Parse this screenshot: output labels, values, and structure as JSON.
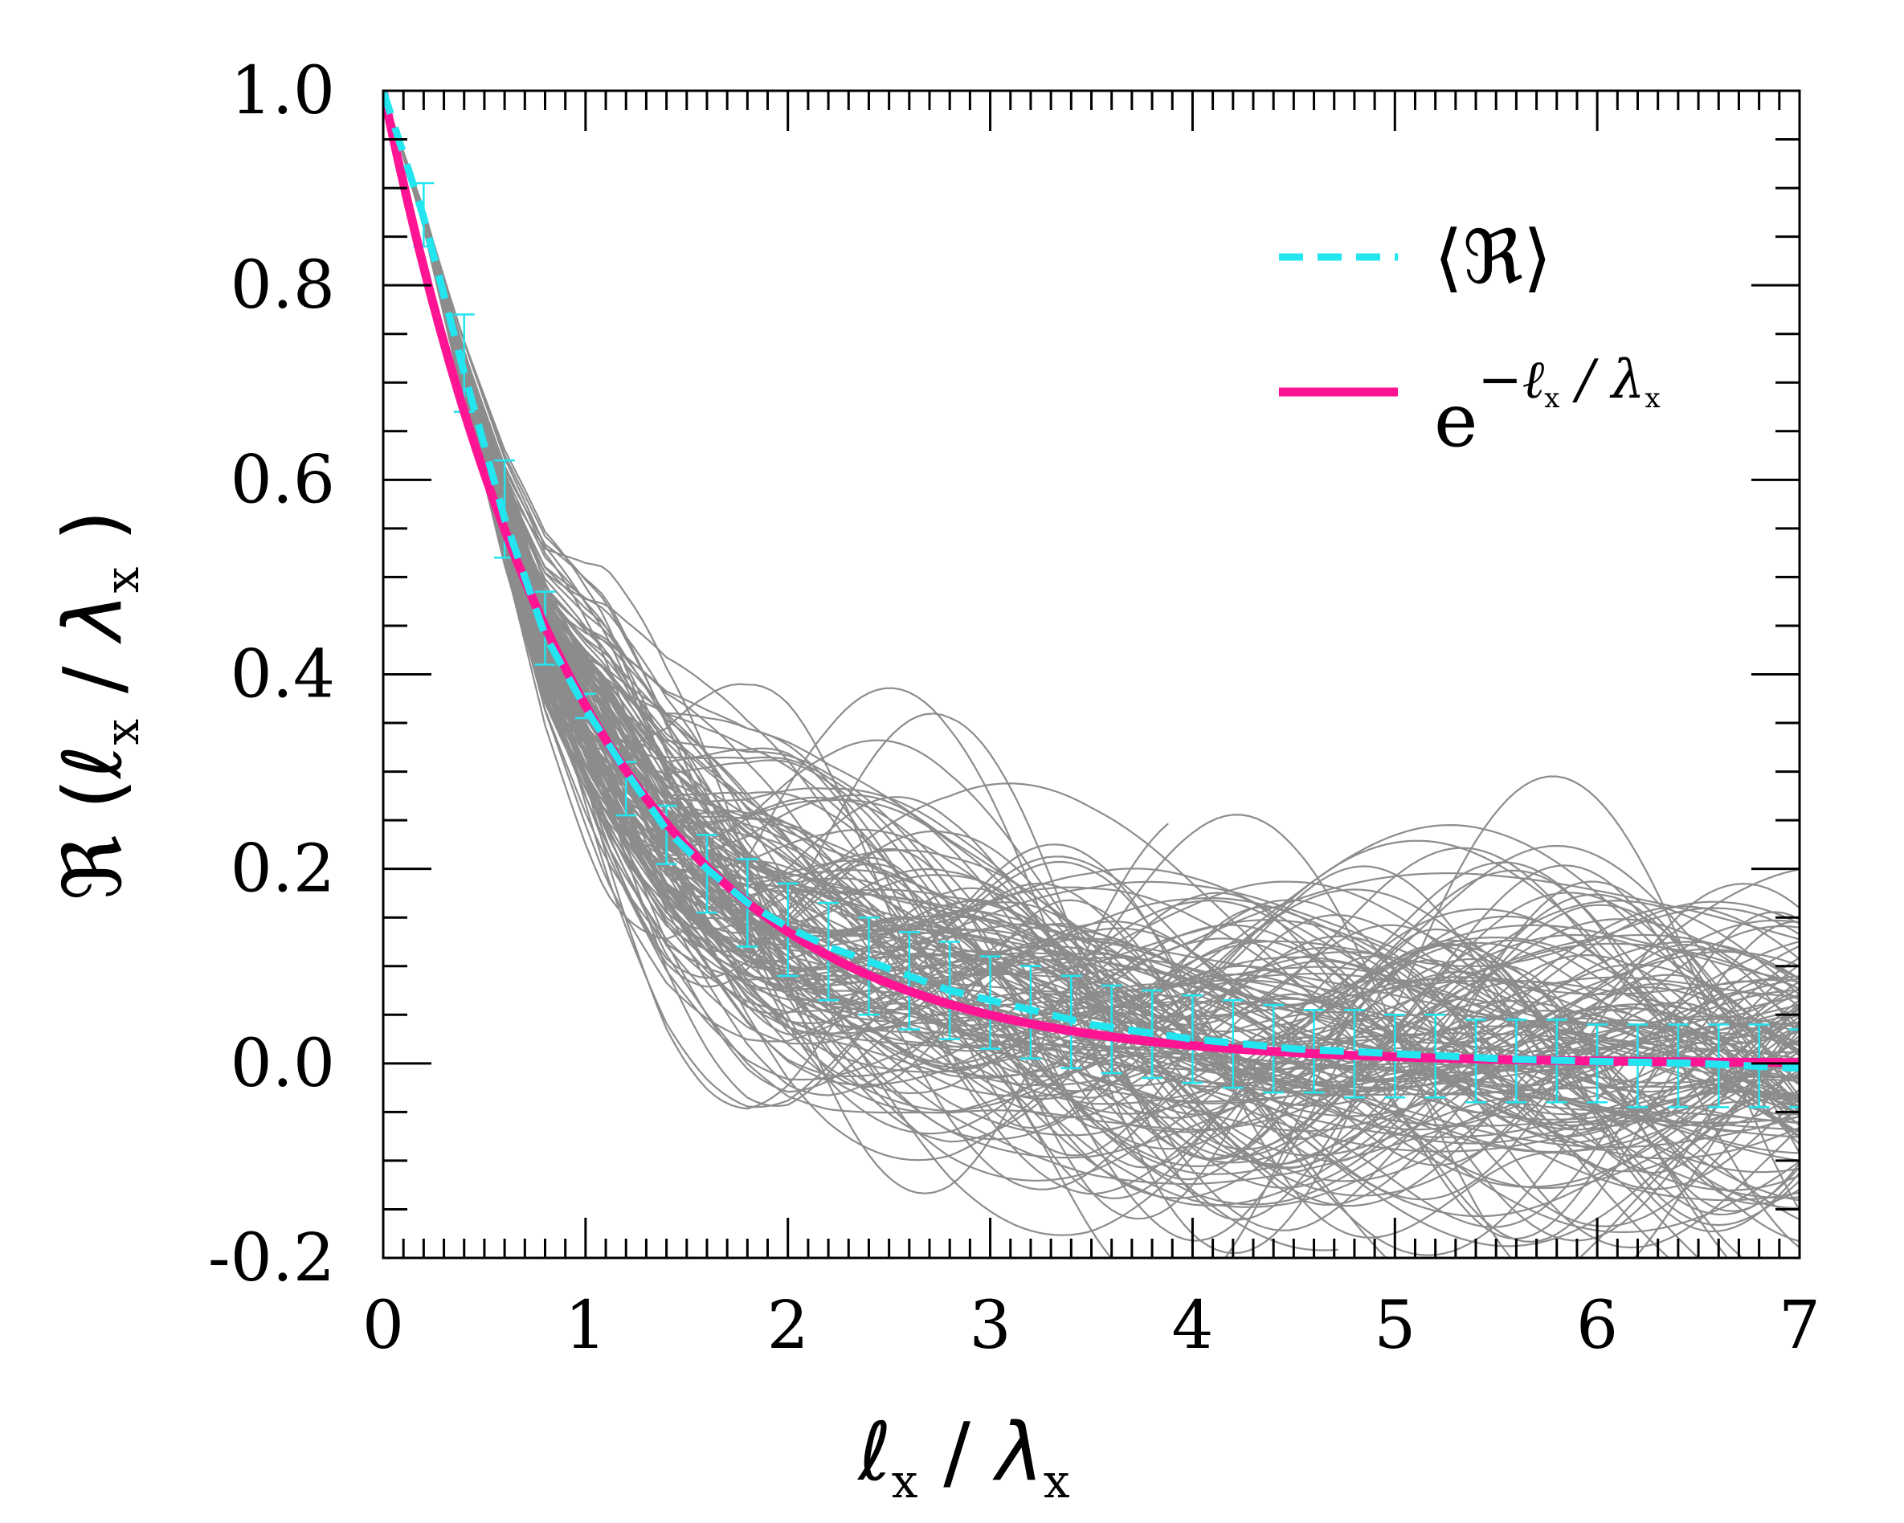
{
  "chart_data": {
    "type": "line",
    "title": "",
    "xlabel": {
      "symbol": "ℓ",
      "sub": "x",
      "slash": "/",
      "symbol2": "λ",
      "sub2": "x"
    },
    "ylabel": {
      "func": "ℜ",
      "open": "(",
      "symbol": "ℓ",
      "sub": "x",
      "slash": "/",
      "symbol2": "λ",
      "sub2": "x",
      "close": ")"
    },
    "xlim": [
      0,
      7
    ],
    "ylim": [
      -0.2,
      1.0
    ],
    "x_tick_labels": [
      "0",
      "1",
      "2",
      "3",
      "4",
      "5",
      "6",
      "7"
    ],
    "y_tick_labels": [
      "-0.2",
      "0.0",
      "0.2",
      "0.4",
      "0.6",
      "0.8",
      "1.0"
    ],
    "grid": false,
    "legend": {
      "placement": "top-right",
      "entries": [
        {
          "label": "⟨ℜ⟩",
          "style": "dashed",
          "color": "#22e5f0"
        },
        {
          "label_base": "e",
          "label_sup": "−ℓ",
          "label_sup_sub": "x",
          "label_sup_rest": " / λ",
          "label_sup_sub2": "x",
          "style": "solid",
          "color": "#ff1493"
        }
      ]
    },
    "series": [
      {
        "name": "⟨ℜ⟩",
        "style": "dashed",
        "color": "#22e5f0",
        "x": [
          0,
          0.2,
          0.4,
          0.6,
          0.8,
          1.0,
          1.2,
          1.4,
          1.6,
          1.8,
          2.0,
          2.2,
          2.4,
          2.6,
          2.8,
          3.0,
          3.5,
          4.0,
          4.5,
          5.0,
          5.5,
          6.0,
          6.5,
          7.0
        ],
        "values": [
          1.0,
          0.87,
          0.71,
          0.56,
          0.44,
          0.365,
          0.3,
          0.24,
          0.2,
          0.165,
          0.14,
          0.12,
          0.105,
          0.09,
          0.075,
          0.065,
          0.04,
          0.025,
          0.015,
          0.01,
          0.005,
          0.002,
          0.0,
          -0.005
        ]
      },
      {
        "name": "exp(-lx/λx)",
        "style": "solid",
        "color": "#ff1493",
        "function": "exp(-x)",
        "x_range": [
          0,
          7
        ]
      }
    ],
    "error_bars": {
      "color": "#22e5f0",
      "x": [
        0.2,
        0.4,
        0.6,
        0.8,
        1.0,
        1.2,
        1.4,
        1.6,
        1.8,
        2.0,
        2.2,
        2.4,
        2.6,
        2.8,
        3.0,
        3.2,
        3.4,
        3.6,
        3.8,
        4.0,
        4.2,
        4.4,
        4.6,
        4.8,
        5.0,
        5.2,
        5.4,
        5.6,
        5.8,
        6.0,
        6.2,
        6.4,
        6.6,
        6.8,
        7.0
      ],
      "lower": [
        0.84,
        0.67,
        0.52,
        0.41,
        0.355,
        0.255,
        0.205,
        0.155,
        0.12,
        0.09,
        0.065,
        0.05,
        0.035,
        0.025,
        0.015,
        0.005,
        -0.005,
        -0.01,
        -0.015,
        -0.02,
        -0.025,
        -0.03,
        -0.03,
        -0.035,
        -0.035,
        -0.035,
        -0.04,
        -0.04,
        -0.04,
        -0.04,
        -0.045,
        -0.045,
        -0.045,
        -0.045,
        -0.045
      ],
      "upper": [
        0.905,
        0.77,
        0.62,
        0.485,
        0.38,
        0.31,
        0.265,
        0.235,
        0.21,
        0.185,
        0.165,
        0.15,
        0.135,
        0.125,
        0.11,
        0.1,
        0.09,
        0.08,
        0.075,
        0.07,
        0.065,
        0.06,
        0.055,
        0.055,
        0.05,
        0.05,
        0.045,
        0.045,
        0.045,
        0.04,
        0.04,
        0.04,
        0.04,
        0.04,
        0.035
      ]
    },
    "sample_curves": {
      "count": 160,
      "color": "#8c8c8c",
      "description": "individual realizations (gray)"
    }
  }
}
